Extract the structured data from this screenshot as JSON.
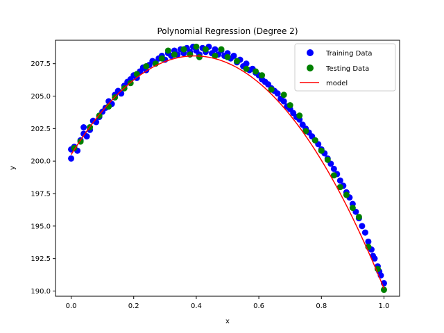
{
  "chart_data": {
    "type": "scatter",
    "title": "Polynomial Regression (Degree 2)",
    "xlabel": "x",
    "ylabel": "y",
    "xlim": [
      -0.05,
      1.05
    ],
    "ylim": [
      189.6,
      209.3
    ],
    "xticks": [
      0.0,
      0.2,
      0.4,
      0.6,
      0.8,
      1.0
    ],
    "xtick_labels": [
      "0.0",
      "0.2",
      "0.4",
      "0.6",
      "0.8",
      "1.0"
    ],
    "yticks": [
      190.0,
      192.5,
      195.0,
      197.5,
      200.0,
      202.5,
      205.0,
      207.5
    ],
    "ytick_labels": [
      "190.0",
      "192.5",
      "195.0",
      "197.5",
      "200.0",
      "202.5",
      "205.0",
      "207.5"
    ],
    "grid": false,
    "legend_position": "upper right",
    "series": [
      {
        "name": "Training Data",
        "kind": "scatter",
        "color": "#0000ff",
        "points": [
          [
            0.0,
            200.2
          ],
          [
            0.0,
            200.9
          ],
          [
            0.01,
            201.1
          ],
          [
            0.02,
            200.8
          ],
          [
            0.03,
            201.6
          ],
          [
            0.04,
            202.1
          ],
          [
            0.04,
            202.6
          ],
          [
            0.05,
            201.9
          ],
          [
            0.06,
            202.4
          ],
          [
            0.07,
            203.1
          ],
          [
            0.08,
            203.0
          ],
          [
            0.09,
            203.4
          ],
          [
            0.1,
            203.8
          ],
          [
            0.11,
            204.1
          ],
          [
            0.12,
            204.6
          ],
          [
            0.13,
            204.4
          ],
          [
            0.14,
            205.1
          ],
          [
            0.15,
            205.4
          ],
          [
            0.16,
            205.2
          ],
          [
            0.17,
            205.8
          ],
          [
            0.18,
            206.1
          ],
          [
            0.19,
            206.3
          ],
          [
            0.2,
            206.6
          ],
          [
            0.21,
            206.4
          ],
          [
            0.22,
            206.9
          ],
          [
            0.23,
            207.2
          ],
          [
            0.24,
            207.0
          ],
          [
            0.25,
            207.4
          ],
          [
            0.26,
            207.7
          ],
          [
            0.27,
            207.6
          ],
          [
            0.28,
            207.9
          ],
          [
            0.29,
            208.1
          ],
          [
            0.3,
            207.8
          ],
          [
            0.31,
            208.3
          ],
          [
            0.32,
            208.1
          ],
          [
            0.33,
            208.5
          ],
          [
            0.34,
            208.2
          ],
          [
            0.35,
            208.6
          ],
          [
            0.36,
            208.3
          ],
          [
            0.37,
            208.7
          ],
          [
            0.38,
            208.4
          ],
          [
            0.39,
            208.8
          ],
          [
            0.4,
            208.5
          ],
          [
            0.41,
            208.2
          ],
          [
            0.42,
            208.7
          ],
          [
            0.43,
            208.4
          ],
          [
            0.44,
            208.8
          ],
          [
            0.45,
            208.3
          ],
          [
            0.46,
            208.6
          ],
          [
            0.47,
            208.2
          ],
          [
            0.48,
            208.5
          ],
          [
            0.49,
            208.1
          ],
          [
            0.5,
            208.3
          ],
          [
            0.51,
            207.9
          ],
          [
            0.52,
            208.1
          ],
          [
            0.53,
            207.6
          ],
          [
            0.54,
            207.8
          ],
          [
            0.55,
            207.3
          ],
          [
            0.56,
            207.5
          ],
          [
            0.57,
            207.0
          ],
          [
            0.58,
            207.1
          ],
          [
            0.59,
            206.8
          ],
          [
            0.6,
            206.6
          ],
          [
            0.61,
            206.3
          ],
          [
            0.62,
            206.1
          ],
          [
            0.63,
            205.9
          ],
          [
            0.64,
            205.6
          ],
          [
            0.65,
            205.4
          ],
          [
            0.66,
            205.2
          ],
          [
            0.67,
            204.8
          ],
          [
            0.68,
            204.6
          ],
          [
            0.69,
            204.2
          ],
          [
            0.7,
            204.0
          ],
          [
            0.71,
            203.7
          ],
          [
            0.72,
            203.4
          ],
          [
            0.73,
            203.2
          ],
          [
            0.74,
            202.8
          ],
          [
            0.75,
            202.5
          ],
          [
            0.76,
            202.2
          ],
          [
            0.77,
            201.9
          ],
          [
            0.78,
            201.6
          ],
          [
            0.79,
            201.3
          ],
          [
            0.8,
            200.9
          ],
          [
            0.81,
            200.6
          ],
          [
            0.82,
            200.2
          ],
          [
            0.83,
            199.8
          ],
          [
            0.84,
            199.4
          ],
          [
            0.85,
            199.0
          ],
          [
            0.86,
            198.5
          ],
          [
            0.87,
            198.1
          ],
          [
            0.88,
            197.6
          ],
          [
            0.89,
            197.2
          ],
          [
            0.9,
            196.7
          ],
          [
            0.91,
            196.1
          ],
          [
            0.92,
            195.6
          ],
          [
            0.93,
            195.0
          ],
          [
            0.94,
            194.5
          ],
          [
            0.95,
            193.8
          ],
          [
            0.96,
            193.2
          ],
          [
            0.97,
            192.5
          ],
          [
            0.98,
            191.9
          ],
          [
            0.99,
            191.2
          ],
          [
            1.0,
            190.6
          ],
          [
            0.985,
            191.5
          ],
          [
            0.965,
            192.7
          ]
        ]
      },
      {
        "name": "Testing Data",
        "kind": "scatter",
        "color": "#008000",
        "points": [
          [
            0.01,
            201.0
          ],
          [
            0.03,
            201.5
          ],
          [
            0.06,
            202.6
          ],
          [
            0.09,
            203.5
          ],
          [
            0.12,
            204.2
          ],
          [
            0.14,
            204.9
          ],
          [
            0.17,
            205.6
          ],
          [
            0.19,
            206.0
          ],
          [
            0.21,
            206.7
          ],
          [
            0.24,
            207.3
          ],
          [
            0.27,
            207.5
          ],
          [
            0.29,
            207.9
          ],
          [
            0.31,
            208.5
          ],
          [
            0.33,
            208.2
          ],
          [
            0.36,
            208.6
          ],
          [
            0.38,
            208.2
          ],
          [
            0.4,
            208.8
          ],
          [
            0.41,
            208.0
          ],
          [
            0.43,
            208.6
          ],
          [
            0.46,
            208.1
          ],
          [
            0.48,
            208.6
          ],
          [
            0.5,
            208.0
          ],
          [
            0.53,
            207.7
          ],
          [
            0.56,
            207.1
          ],
          [
            0.59,
            206.9
          ],
          [
            0.61,
            206.6
          ],
          [
            0.64,
            205.5
          ],
          [
            0.68,
            205.1
          ],
          [
            0.7,
            204.3
          ],
          [
            0.73,
            203.5
          ],
          [
            0.75,
            202.3
          ],
          [
            0.78,
            201.6
          ],
          [
            0.8,
            200.8
          ],
          [
            0.82,
            200.1
          ],
          [
            0.84,
            198.9
          ],
          [
            0.86,
            198.0
          ],
          [
            0.88,
            197.4
          ],
          [
            0.9,
            196.4
          ],
          [
            0.92,
            195.7
          ],
          [
            0.95,
            193.4
          ],
          [
            0.98,
            191.7
          ],
          [
            1.0,
            190.1
          ]
        ]
      },
      {
        "name": "model",
        "kind": "line",
        "color": "#ff0000",
        "coefficients": [
          200.5,
          38.5,
          -48.8
        ]
      }
    ]
  }
}
